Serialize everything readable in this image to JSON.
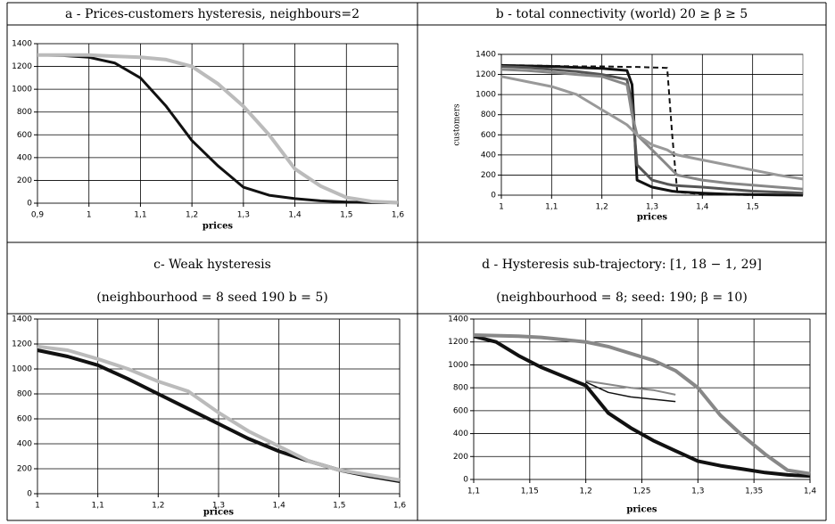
{
  "chart_data": [
    {
      "type": "line",
      "title": "a - Prices-customers hysteresis, neighbours=2",
      "xlabel": "prices",
      "x": [
        0.9,
        0.95,
        1.0,
        1.05,
        1.1,
        1.15,
        1.2,
        1.25,
        1.3,
        1.35,
        1.4,
        1.45,
        1.5,
        1.55,
        1.6
      ],
      "series": [
        {
          "color": "#111111",
          "line_width": 3,
          "values": [
            1300,
            1295,
            1280,
            1230,
            1100,
            850,
            550,
            330,
            140,
            70,
            40,
            20,
            10,
            5,
            3
          ]
        },
        {
          "color": "#bbbbbb",
          "line_width": 4,
          "values": [
            1300,
            1300,
            1300,
            1290,
            1280,
            1260,
            1200,
            1050,
            850,
            600,
            300,
            150,
            50,
            15,
            5
          ]
        }
      ],
      "xlim": [
        0.9,
        1.6
      ],
      "xticks": [
        {
          "value": 0.9,
          "label": "0,9"
        },
        1,
        {
          "value": 1.1,
          "label": "1,1"
        },
        {
          "value": 1.2,
          "label": "1,2"
        },
        {
          "value": 1.3,
          "label": "1,3"
        },
        {
          "value": 1.4,
          "label": "1,4"
        },
        {
          "value": 1.5,
          "label": "1,5"
        },
        {
          "value": 1.6,
          "label": "1,6"
        }
      ],
      "ylim": [
        0,
        1400
      ],
      "yticks": [
        0,
        200,
        400,
        600,
        800,
        1000,
        1200,
        1400
      ],
      "grid": true
    },
    {
      "type": "line",
      "title": "b - total connectivity (world) 20 ≥ β ≥ 5",
      "xlabel": "prices",
      "ylabel": "customers",
      "x": [
        1,
        1.05,
        1.1,
        1.15,
        1.2,
        1.25,
        1.26,
        1.27,
        1.3,
        1.33,
        1.34,
        1.35,
        1.4,
        1.45,
        1.5,
        1.55,
        1.6
      ],
      "series": [
        {
          "color": "#111111",
          "line_width": 3,
          "values": [
            1290,
            1285,
            1280,
            1270,
            1260,
            1240,
            1100,
            150,
            80,
            50,
            40,
            35,
            20,
            10,
            5,
            2,
            0
          ]
        },
        {
          "color": "#111111",
          "line_width": 2,
          "dash": true,
          "values": [
            1290,
            1290,
            1285,
            1280,
            1280,
            1275,
            1275,
            1275,
            1270,
            1265,
            600,
            30,
            10,
            5,
            2,
            1,
            0
          ]
        },
        {
          "color": "#555555",
          "line_width": 3,
          "values": [
            1280,
            1270,
            1250,
            1230,
            1200,
            1150,
            900,
            300,
            150,
            110,
            100,
            95,
            80,
            60,
            40,
            30,
            20
          ]
        },
        {
          "color": "#888888",
          "line_width": 3,
          "values": [
            1250,
            1240,
            1220,
            1200,
            1180,
            1100,
            800,
            600,
            450,
            300,
            250,
            200,
            150,
            120,
            100,
            80,
            60
          ]
        },
        {
          "color": "#999999",
          "line_width": 3,
          "values": [
            1180,
            1130,
            1080,
            1000,
            850,
            700,
            650,
            600,
            500,
            450,
            420,
            400,
            350,
            300,
            250,
            200,
            160
          ]
        }
      ],
      "xlim": [
        1,
        1.6
      ],
      "xticks": [
        1,
        {
          "value": 1.1,
          "label": "1,1"
        },
        {
          "value": 1.2,
          "label": "1,2"
        },
        {
          "value": 1.3,
          "label": "1,3"
        },
        {
          "value": 1.4,
          "label": "1,4"
        },
        {
          "value": 1.5,
          "label": "1,5"
        }
      ],
      "ylim": [
        0,
        1400
      ],
      "yticks": [
        0,
        200,
        400,
        600,
        800,
        1000,
        1200,
        1400
      ],
      "grid": true
    },
    {
      "type": "line",
      "title": "c- Weak hysteresis",
      "subtitle": "(neighbourhood = 8 seed 190 b = 5)",
      "xlabel": "prices",
      "x": [
        1,
        1.05,
        1.1,
        1.15,
        1.2,
        1.25,
        1.3,
        1.35,
        1.4,
        1.45,
        1.5,
        1.55,
        1.6
      ],
      "series": [
        {
          "color": "#111111",
          "line_width": 4,
          "values": [
            1150,
            1100,
            1030,
            920,
            800,
            680,
            560,
            440,
            340,
            260,
            190,
            140,
            100
          ]
        },
        {
          "color": "#bbbbbb",
          "line_width": 4,
          "values": [
            1180,
            1150,
            1080,
            1000,
            900,
            820,
            650,
            500,
            380,
            260,
            190,
            150,
            110
          ]
        }
      ],
      "xlim": [
        1,
        1.6
      ],
      "xticks": [
        1,
        {
          "value": 1.1,
          "label": "1,1"
        },
        {
          "value": 1.2,
          "label": "1,2"
        },
        {
          "value": 1.3,
          "label": "1,3"
        },
        {
          "value": 1.4,
          "label": "1,4"
        },
        {
          "value": 1.5,
          "label": "1,5"
        },
        {
          "value": 1.6,
          "label": "1,6"
        }
      ],
      "ylim": [
        0,
        1400
      ],
      "yticks": [
        0,
        200,
        400,
        600,
        800,
        1000,
        1200,
        1400
      ],
      "grid": true
    },
    {
      "type": "line",
      "title": "d - Hysteresis sub-trajectory: [1, 18 − 1, 29]",
      "subtitle": "(neighbourhood = 8; seed: 190; β = 10)",
      "xlabel": "prices",
      "x": [
        1.1,
        1.12,
        1.14,
        1.16,
        1.18,
        1.2,
        1.22,
        1.24,
        1.26,
        1.28,
        1.3,
        1.32,
        1.34,
        1.36,
        1.38,
        1.4
      ],
      "series": [
        {
          "color": "#111111",
          "line_width": 4,
          "values": [
            1250,
            1200,
            1080,
            980,
            900,
            820,
            580,
            450,
            340,
            250,
            160,
            120,
            90,
            60,
            40,
            30
          ]
        },
        {
          "color": "#888888",
          "line_width": 4,
          "values": [
            1260,
            1255,
            1250,
            1240,
            1220,
            1200,
            1160,
            1100,
            1040,
            950,
            800,
            560,
            380,
            220,
            80,
            50
          ]
        },
        {
          "color": "#888888",
          "line_width": 2,
          "values": [
            null,
            null,
            null,
            null,
            null,
            860,
            830,
            800,
            780,
            740,
            null,
            null,
            null,
            null,
            null,
            null
          ]
        },
        {
          "color": "#111111",
          "line_width": 1.5,
          "values": [
            null,
            null,
            null,
            null,
            null,
            850,
            760,
            720,
            700,
            680,
            null,
            null,
            null,
            null,
            null,
            null
          ]
        }
      ],
      "xlim": [
        1.1,
        1.4
      ],
      "xticks": [
        {
          "value": 1.1,
          "label": "1,1"
        },
        {
          "value": 1.15,
          "label": "1,15"
        },
        {
          "value": 1.2,
          "label": "1,2"
        },
        {
          "value": 1.25,
          "label": "1,25"
        },
        {
          "value": 1.3,
          "label": "1,3"
        },
        {
          "value": 1.35,
          "label": "1,35"
        },
        {
          "value": 1.4,
          "label": "1,4"
        }
      ],
      "ylim": [
        0,
        1400
      ],
      "yticks": [
        0,
        200,
        400,
        600,
        800,
        1000,
        1200,
        1400
      ],
      "grid": true
    }
  ]
}
